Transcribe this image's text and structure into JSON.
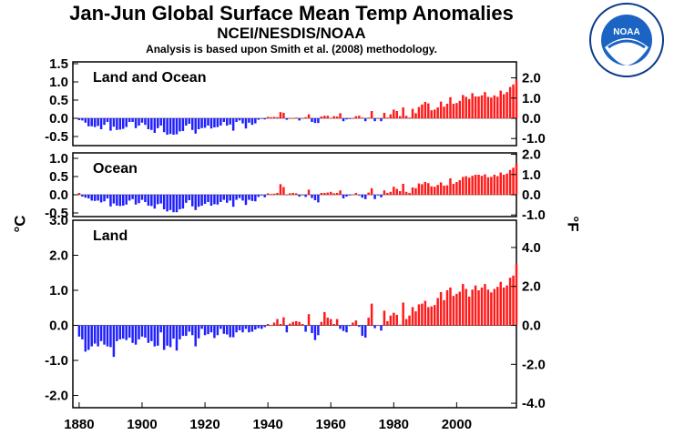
{
  "header": {
    "title": "Jan-Jun Global Surface Mean Temp Anomalies",
    "subtitle": "NCEI/NESDIS/NOAA",
    "note": "Analysis is based upon Smith et al. (2008) methodology."
  },
  "units": {
    "left": "°C",
    "right": "°F"
  },
  "logo": {
    "text": "NOAA",
    "ring_text": "NATIONAL OCEANIC AND ATMOSPHERIC ADMINISTRATION · U.S. DEPARTMENT OF COMMERCE"
  },
  "colors": {
    "positive": "#ff1a1a",
    "negative": "#1f1fff"
  },
  "chart_data": [
    {
      "type": "bar",
      "title": "Land and Ocean",
      "ylim": [
        -0.75,
        1.55
      ],
      "yticks_c": [
        "1.5",
        "1.0",
        "0.5",
        "0.0",
        "-0.5"
      ],
      "yticks_f": [
        "2.0",
        "1.0",
        "0.0",
        "-1.0"
      ],
      "x_start": 1880,
      "values": [
        -0.05,
        -0.06,
        -0.12,
        -0.22,
        -0.22,
        -0.24,
        -0.21,
        -0.3,
        -0.18,
        -0.1,
        -0.34,
        -0.23,
        -0.32,
        -0.31,
        -0.29,
        -0.24,
        -0.1,
        -0.1,
        -0.27,
        -0.2,
        -0.12,
        -0.18,
        -0.3,
        -0.32,
        -0.4,
        -0.27,
        -0.2,
        -0.38,
        -0.45,
        -0.43,
        -0.45,
        -0.44,
        -0.36,
        -0.35,
        -0.2,
        -0.15,
        -0.32,
        -0.42,
        -0.3,
        -0.27,
        -0.26,
        -0.2,
        -0.28,
        -0.25,
        -0.24,
        -0.2,
        -0.1,
        -0.2,
        -0.17,
        -0.34,
        -0.1,
        -0.06,
        -0.14,
        -0.28,
        -0.12,
        -0.18,
        -0.14,
        -0.04,
        -0.01,
        -0.03,
        0.04,
        0.03,
        0.04,
        0.03,
        0.17,
        0.15,
        -0.04,
        0.0,
        0.0,
        0.02,
        -0.06,
        0.0,
        0.03,
        0.11,
        -0.1,
        -0.13,
        -0.13,
        0.05,
        0.07,
        0.07,
        0.01,
        0.06,
        0.05,
        0.14,
        -0.08,
        -0.03,
        -0.02,
        0.0,
        0.06,
        0.07,
        0.02,
        -0.08,
        0.02,
        0.2,
        -0.08,
        0.0,
        -0.08,
        0.15,
        0.02,
        0.11,
        0.24,
        0.2,
        0.06,
        0.3,
        0.07,
        0.02,
        0.26,
        0.14,
        0.31,
        0.38,
        0.45,
        0.41,
        0.22,
        0.24,
        0.3,
        0.46,
        0.32,
        0.4,
        0.58,
        0.4,
        0.42,
        0.48,
        0.64,
        0.59,
        0.53,
        0.69,
        0.6,
        0.6,
        0.63,
        0.72,
        0.59,
        0.57,
        0.63,
        0.59,
        0.76,
        0.66,
        0.72,
        0.86,
        0.93,
        1.06
      ],
      "highlight_start": 1944
    },
    {
      "type": "bar",
      "title": "Ocean",
      "ylim": [
        -0.6,
        1.15
      ],
      "yticks_c": [
        "1.0",
        "0.5",
        "0.0",
        "-0.5"
      ],
      "yticks_f": [
        "2.0",
        "1.0",
        "0.0",
        "-1.0"
      ],
      "x_start": 1880,
      "values": [
        0.05,
        -0.05,
        -0.08,
        -0.1,
        -0.16,
        -0.17,
        -0.16,
        -0.21,
        -0.18,
        -0.1,
        -0.32,
        -0.24,
        -0.3,
        -0.31,
        -0.3,
        -0.27,
        -0.16,
        -0.12,
        -0.27,
        -0.23,
        -0.14,
        -0.2,
        -0.3,
        -0.31,
        -0.38,
        -0.26,
        -0.24,
        -0.4,
        -0.46,
        -0.42,
        -0.48,
        -0.48,
        -0.4,
        -0.38,
        -0.22,
        -0.15,
        -0.32,
        -0.42,
        -0.33,
        -0.3,
        -0.25,
        -0.2,
        -0.3,
        -0.26,
        -0.27,
        -0.2,
        -0.14,
        -0.22,
        -0.16,
        -0.33,
        -0.14,
        -0.09,
        -0.16,
        -0.28,
        -0.14,
        -0.17,
        -0.18,
        -0.06,
        -0.02,
        -0.07,
        0.04,
        0.02,
        0.03,
        0.05,
        0.29,
        0.21,
        0.0,
        0.04,
        0.05,
        0.04,
        -0.05,
        -0.01,
        -0.06,
        0.14,
        -0.09,
        -0.15,
        -0.21,
        0.05,
        0.05,
        0.06,
        0.08,
        0.04,
        0.05,
        0.12,
        -0.1,
        -0.05,
        -0.02,
        0.01,
        0.05,
        -0.02,
        -0.08,
        -0.12,
        0.06,
        0.18,
        -0.12,
        -0.02,
        -0.07,
        0.12,
        0.05,
        0.08,
        0.22,
        0.16,
        0.1,
        0.3,
        0.08,
        0.05,
        0.2,
        0.18,
        0.31,
        0.29,
        0.35,
        0.32,
        0.23,
        0.22,
        0.27,
        0.34,
        0.25,
        0.26,
        0.45,
        0.3,
        0.35,
        0.4,
        0.49,
        0.51,
        0.47,
        0.52,
        0.55,
        0.55,
        0.52,
        0.56,
        0.48,
        0.49,
        0.55,
        0.51,
        0.61,
        0.55,
        0.58,
        0.68,
        0.74,
        0.86
      ],
      "highlight_start": 1944
    },
    {
      "type": "bar",
      "title": "Land",
      "ylim": [
        -2.35,
        3.0
      ],
      "yticks_c": [
        "3.0",
        "2.0",
        "1.0",
        "0.0",
        "-1.0",
        "-2.0"
      ],
      "yticks_f": [
        "4.0",
        "2.0",
        "0.0",
        "-2.0",
        "-4.0"
      ],
      "x_start": 1880,
      "values": [
        -0.32,
        -0.4,
        -0.75,
        -0.7,
        -0.6,
        -0.52,
        -0.6,
        -0.45,
        -0.55,
        -0.6,
        -0.62,
        -0.9,
        -0.45,
        -0.4,
        -0.38,
        -0.42,
        -0.35,
        -0.5,
        -0.55,
        -0.4,
        -0.32,
        -0.35,
        -0.5,
        -0.45,
        -0.6,
        -0.58,
        -0.2,
        -0.7,
        -0.58,
        -0.62,
        -0.38,
        -0.72,
        -0.4,
        -0.3,
        -0.3,
        -0.18,
        -0.28,
        -0.6,
        -0.37,
        -0.1,
        -0.28,
        -0.25,
        -0.2,
        -0.36,
        -0.28,
        -0.1,
        -0.24,
        -0.26,
        -0.34,
        -0.34,
        -0.2,
        -0.14,
        -0.2,
        -0.1,
        -0.2,
        -0.18,
        -0.12,
        -0.08,
        -0.1,
        -0.05,
        0.04,
        0.0,
        0.08,
        0.18,
        0.04,
        0.23,
        -0.2,
        0.05,
        0.1,
        0.12,
        0.1,
        0.04,
        -0.18,
        0.32,
        -0.22,
        -0.42,
        -0.28,
        0.1,
        0.38,
        0.22,
        0.18,
        0.04,
        0.18,
        -0.1,
        -0.16,
        -0.2,
        -0.02,
        0.08,
        0.14,
        -0.04,
        -0.3,
        -0.35,
        0.22,
        0.62,
        -0.08,
        0.0,
        -0.15,
        0.42,
        0.12,
        0.28,
        0.36,
        0.3,
        0.02,
        0.65,
        0.18,
        0.28,
        0.52,
        0.4,
        0.6,
        0.62,
        0.7,
        0.52,
        0.54,
        0.58,
        0.78,
        0.95,
        0.72,
        1.0,
        1.08,
        0.84,
        0.9,
        0.96,
        1.18,
        1.04,
        0.82,
        1.02,
        1.14,
        1.0,
        1.08,
        1.18,
        1.02,
        0.94,
        1.04,
        1.1,
        1.24,
        1.08,
        1.14,
        1.36,
        1.42,
        1.76
      ],
      "highlight_start": 1944
    }
  ],
  "x_axis": {
    "tick_labels": [
      "1880",
      "1900",
      "1920",
      "1940",
      "1960",
      "1980",
      "2000"
    ],
    "xlim": [
      1878,
      2019
    ]
  }
}
